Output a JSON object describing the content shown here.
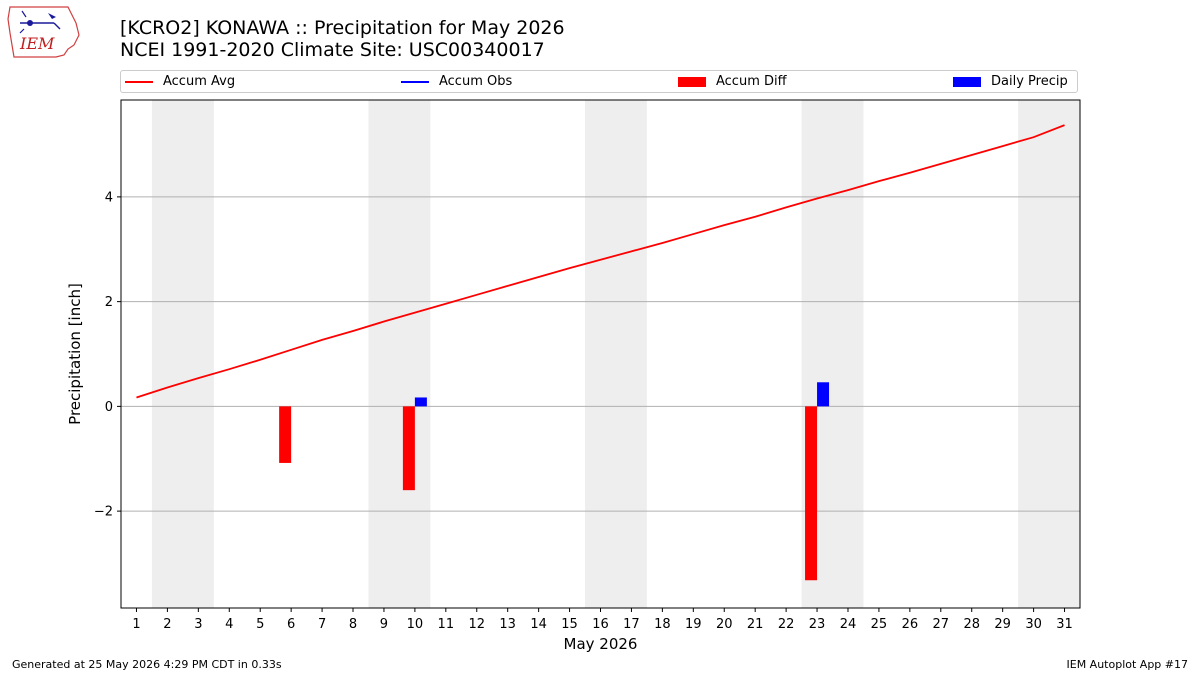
{
  "header": {
    "title_line1": "[KCRO2] KONAWA :: Precipitation for May 2026",
    "title_line2": "NCEI 1991-2020 Climate Site: USC00340017",
    "logo_text": "IEM"
  },
  "legend": {
    "placement": "top (above plot)",
    "items": [
      {
        "label": "Accum Avg",
        "kind": "line",
        "color": "#ff0000"
      },
      {
        "label": "Accum Obs",
        "kind": "line",
        "color": "#0000ff"
      },
      {
        "label": "Accum Diff",
        "kind": "patch",
        "color": "#ff0000"
      },
      {
        "label": "Daily Precip",
        "kind": "patch",
        "color": "#0000ff"
      }
    ]
  },
  "footer": {
    "left": "Generated at 25 May 2026 4:29 PM CDT in 0.33s",
    "right": "IEM Autoplot App #17"
  },
  "colors": {
    "avg": "#ff0000",
    "obs": "#0000ff",
    "diff": "#ff0000",
    "daily": "#0000ff",
    "weekend_shade": "#eeeeee",
    "grid": "#b0b0b0"
  },
  "chart_data": {
    "type": "bar",
    "title": "[KCRO2] KONAWA :: Precipitation for May 2026",
    "subtitle": "NCEI 1991-2020 Climate Site: USC00340017",
    "xlabel": "May 2026",
    "ylabel": "Precipitation [inch]",
    "x": [
      1,
      2,
      3,
      4,
      5,
      6,
      7,
      8,
      9,
      10,
      11,
      12,
      13,
      14,
      15,
      16,
      17,
      18,
      19,
      20,
      21,
      22,
      23,
      24,
      25,
      26,
      27,
      28,
      29,
      30,
      31
    ],
    "xlim": [
      0.5,
      31.5
    ],
    "ylim": [
      -3.85,
      5.85
    ],
    "yticks": [
      -2,
      0,
      2,
      4
    ],
    "ytick_labels": [
      "−2",
      "0",
      "2",
      "4"
    ],
    "grid": "horizontal",
    "weekend_shading": [
      [
        1.5,
        3.5
      ],
      [
        8.5,
        10.5
      ],
      [
        15.5,
        17.5
      ],
      [
        22.5,
        24.5
      ],
      [
        29.5,
        31.5
      ]
    ],
    "series": [
      {
        "name": "Accum Avg",
        "type": "line",
        "values": [
          0.17,
          0.36,
          0.54,
          0.71,
          0.89,
          1.08,
          1.27,
          1.44,
          1.62,
          1.79,
          1.96,
          2.13,
          2.3,
          2.47,
          2.64,
          2.8,
          2.96,
          3.12,
          3.29,
          3.46,
          3.62,
          3.8,
          3.97,
          4.13,
          4.3,
          4.46,
          4.63,
          4.8,
          4.97,
          5.14,
          5.37
        ]
      },
      {
        "name": "Accum Diff",
        "type": "bar",
        "points": [
          {
            "x": 6,
            "value": -1.08
          },
          {
            "x": 10,
            "value": -1.6
          },
          {
            "x": 23,
            "value": -3.32
          }
        ]
      },
      {
        "name": "Daily Precip",
        "type": "bar",
        "points": [
          {
            "x": 10,
            "value": 0.17
          },
          {
            "x": 23,
            "value": 0.46
          }
        ]
      }
    ]
  }
}
